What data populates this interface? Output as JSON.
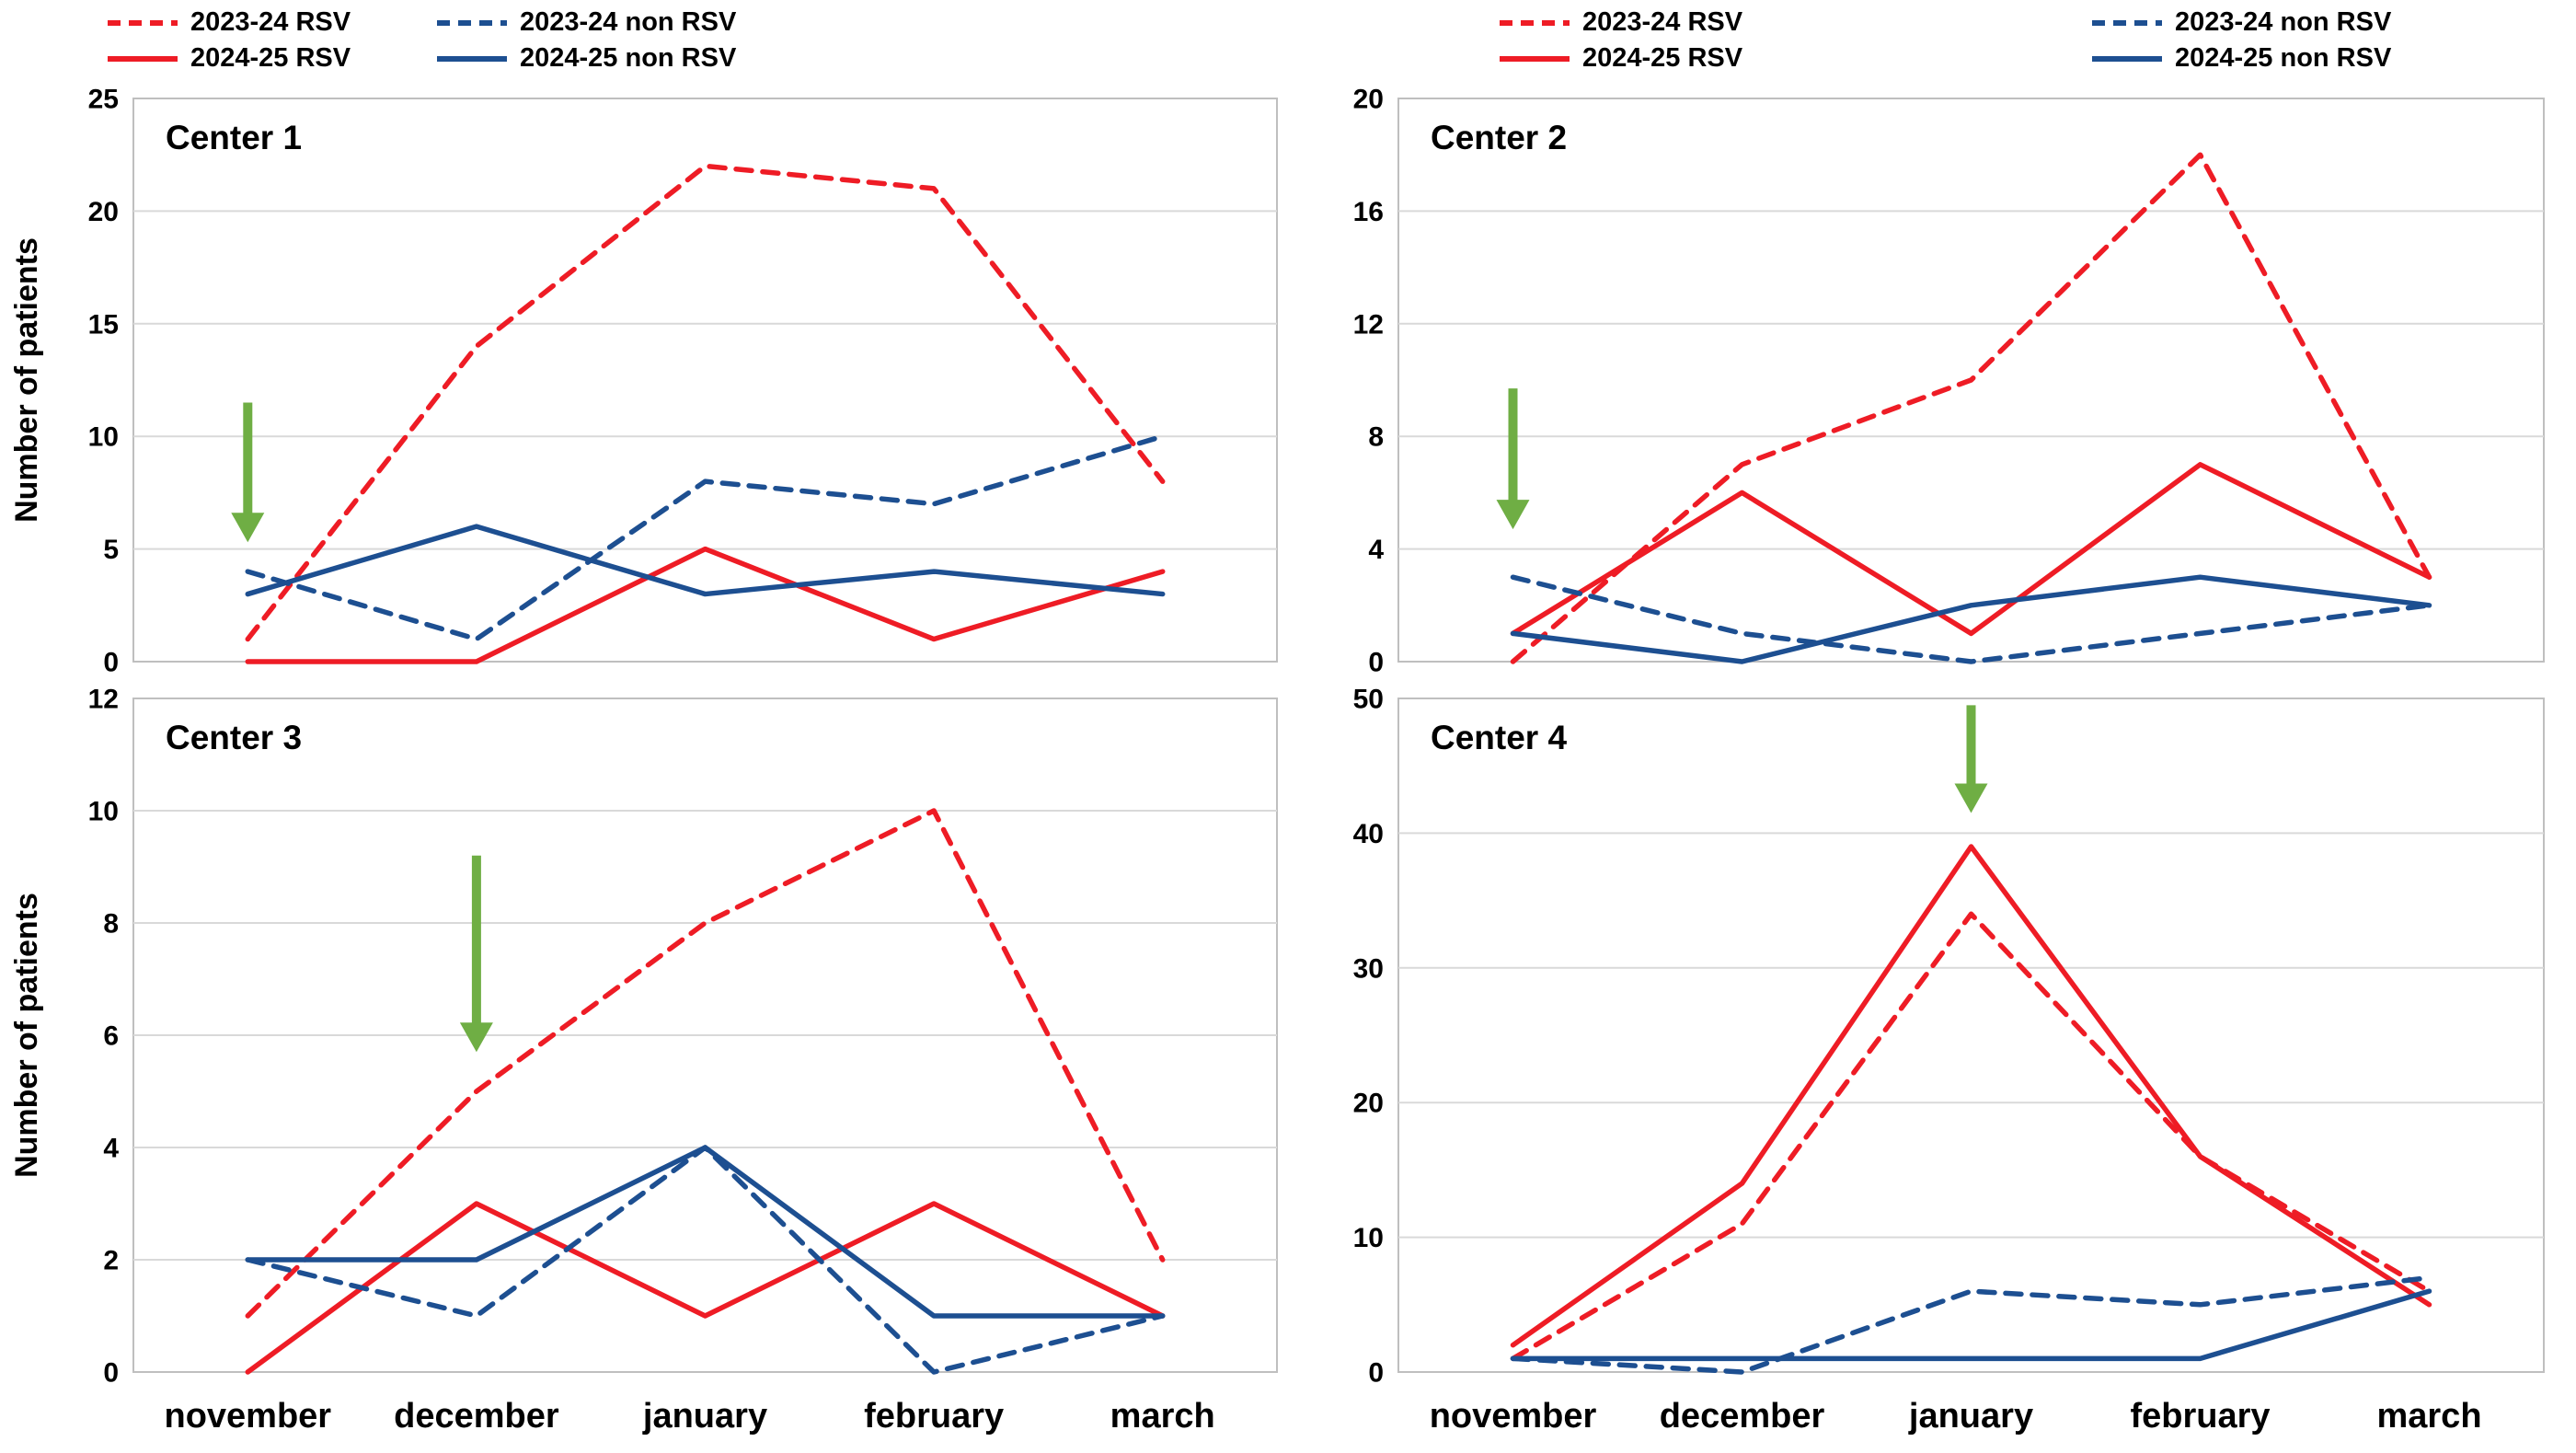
{
  "colors": {
    "rsv_red": "#ee1c25",
    "non_rsv_blue": "#1d4f91",
    "arrow_green": "#6fae44",
    "gridline": "#d9d9d9",
    "plot_border": "#bfbfbf",
    "text": "#000000"
  },
  "ylabel": "Number of patients",
  "months": [
    "november",
    "december",
    "january",
    "february",
    "march"
  ],
  "legend": {
    "items": [
      {
        "label": "2023-24 RSV",
        "style": "red-dashed"
      },
      {
        "label": "2024-25 RSV",
        "style": "red-solid"
      },
      {
        "label": "2023-24 non RSV",
        "style": "blue-dashed"
      },
      {
        "label": "2024-25 non RSV",
        "style": "blue-solid"
      }
    ]
  },
  "chart_data": [
    {
      "type": "line",
      "title": "Center 1",
      "x": [
        "november",
        "december",
        "january",
        "february",
        "march"
      ],
      "ylabel": "Number of patients",
      "ylim": [
        0,
        25
      ],
      "ytick_step": 5,
      "grid": true,
      "series": [
        {
          "name": "2023-24 RSV",
          "style": "red-dashed",
          "values": [
            1,
            14,
            22,
            21,
            8
          ]
        },
        {
          "name": "2024-25 RSV",
          "style": "red-solid",
          "values": [
            0,
            0,
            5,
            1,
            4
          ]
        },
        {
          "name": "2023-24 non RSV",
          "style": "blue-dashed",
          "values": [
            4,
            1,
            8,
            7,
            10
          ]
        },
        {
          "name": "2024-25 non RSV",
          "style": "blue-solid",
          "values": [
            3,
            6,
            3,
            4,
            3
          ]
        }
      ],
      "annotation_arrow": {
        "month_index": 0,
        "tail_y": 11.5,
        "tip_y": 5.3
      }
    },
    {
      "type": "line",
      "title": "Center 2",
      "x": [
        "november",
        "december",
        "january",
        "february",
        "march"
      ],
      "ylim": [
        0,
        20
      ],
      "ytick_step": 4,
      "grid": true,
      "series": [
        {
          "name": "2023-24 RSV",
          "style": "red-dashed",
          "values": [
            0,
            7,
            10,
            18,
            3
          ]
        },
        {
          "name": "2024-25 RSV",
          "style": "red-solid",
          "values": [
            1,
            6,
            1,
            7,
            3
          ]
        },
        {
          "name": "2023-24 non RSV",
          "style": "blue-dashed",
          "values": [
            3,
            1,
            0,
            1,
            2
          ]
        },
        {
          "name": "2024-25 non RSV",
          "style": "blue-solid",
          "values": [
            1,
            0,
            2,
            3,
            2
          ]
        }
      ],
      "annotation_arrow": {
        "month_index": 0,
        "tail_y": 9.7,
        "tip_y": 4.7
      }
    },
    {
      "type": "line",
      "title": "Center 3",
      "x": [
        "november",
        "december",
        "january",
        "february",
        "march"
      ],
      "ylabel": "Number of patients",
      "ylim": [
        0,
        12
      ],
      "ytick_step": 2,
      "grid": true,
      "series": [
        {
          "name": "2023-24 RSV",
          "style": "red-dashed",
          "values": [
            1,
            5,
            8,
            10,
            2
          ]
        },
        {
          "name": "2024-25 RSV",
          "style": "red-solid",
          "values": [
            0,
            3,
            1,
            3,
            1
          ]
        },
        {
          "name": "2023-24 non RSV",
          "style": "blue-dashed",
          "values": [
            2,
            1,
            4,
            0,
            1
          ]
        },
        {
          "name": "2024-25 non RSV",
          "style": "blue-solid",
          "values": [
            2,
            2,
            4,
            1,
            1
          ]
        }
      ],
      "annotation_arrow": {
        "month_index": 1,
        "tail_y": 9.2,
        "tip_y": 5.7
      }
    },
    {
      "type": "line",
      "title": "Center 4",
      "x": [
        "november",
        "december",
        "january",
        "february",
        "march"
      ],
      "ylim": [
        0,
        50
      ],
      "ytick_step": 10,
      "grid": true,
      "series": [
        {
          "name": "2023-24 RSV",
          "style": "red-dashed",
          "values": [
            1,
            11,
            34,
            16,
            6
          ]
        },
        {
          "name": "2024-25 RSV",
          "style": "red-solid",
          "values": [
            2,
            14,
            39,
            16,
            5
          ]
        },
        {
          "name": "2023-24 non RSV",
          "style": "blue-dashed",
          "values": [
            1,
            0,
            6,
            5,
            7
          ]
        },
        {
          "name": "2024-25 non RSV",
          "style": "blue-solid",
          "values": [
            1,
            1,
            1,
            1,
            6
          ]
        }
      ],
      "annotation_arrow": {
        "month_index": 2,
        "tail_y": 49.5,
        "tip_y": 41.5
      }
    }
  ]
}
